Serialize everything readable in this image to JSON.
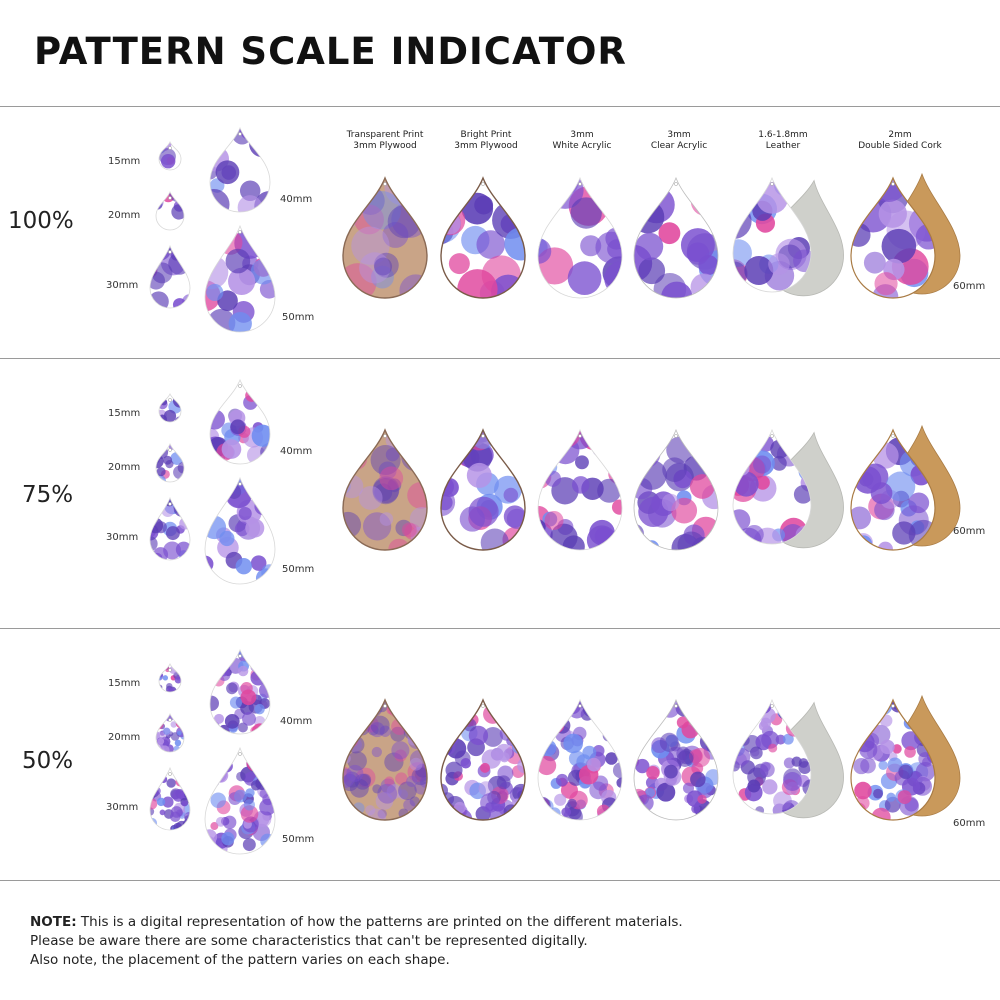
{
  "title": "PATTERN SCALE INDICATOR",
  "materials": [
    {
      "line1": "Transparent Print",
      "line2": "3mm Plywood"
    },
    {
      "line1": "Bright Print",
      "line2": "3mm Plywood"
    },
    {
      "line1": "3mm",
      "line2": "White Acrylic"
    },
    {
      "line1": "3mm",
      "line2": "Clear Acrylic"
    },
    {
      "line1": "1.6-1.8mm",
      "line2": "Leather"
    },
    {
      "line1": "2mm",
      "line2": "Double Sided Cork"
    }
  ],
  "sizes": [
    "15mm",
    "20mm",
    "30mm",
    "40mm",
    "50mm"
  ],
  "large_size": "60mm",
  "rows": [
    {
      "scale": "100%",
      "pattern_scale": 1.0
    },
    {
      "scale": "75%",
      "pattern_scale": 0.75
    },
    {
      "scale": "50%",
      "pattern_scale": 0.5
    }
  ],
  "colors": {
    "purple": "#5b3db5",
    "violet": "#7a4fcf",
    "pink": "#e0479e",
    "blue": "#6f8df0",
    "lavender": "#b592e6",
    "plywood": "#c9a487",
    "leather": "#cfd0cb",
    "cork": "#c9995b"
  },
  "note": {
    "label": "NOTE:",
    "line1": " This is a digital representation of how the patterns are printed on the different materials.",
    "line2": "Please be aware there are some characteristics that can't be represented digitally.",
    "line3": "Also note, the placement of the pattern varies on each shape."
  }
}
